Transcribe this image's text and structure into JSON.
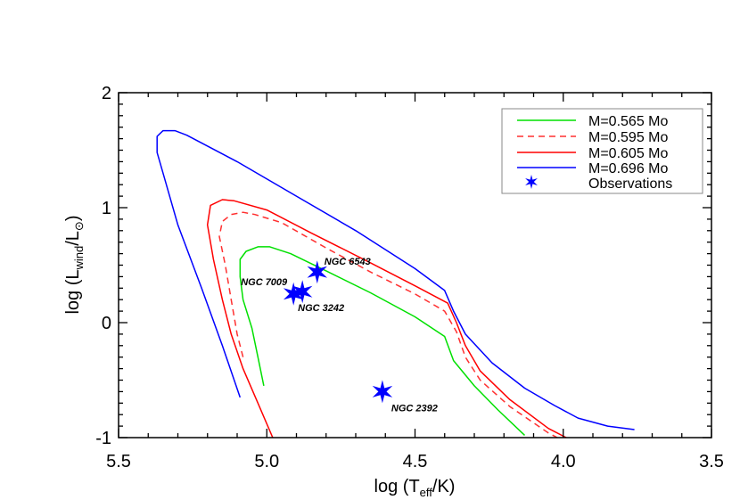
{
  "chart_data": {
    "type": "line",
    "title": "",
    "xlabel": "log (T_eff/K)",
    "ylabel": "log (L_wind/L_sun)",
    "xlim": [
      5.5,
      3.5
    ],
    "ylim": [
      -1,
      2
    ],
    "x_reversed": true,
    "x_ticks": [
      "5.5",
      "5.0",
      "4.5",
      "4.0",
      "3.5"
    ],
    "y_ticks": [
      "-1",
      "0",
      "1",
      "2"
    ],
    "grid": false,
    "legend_position": "upper right",
    "series": [
      {
        "name": "M=0.565 Mo",
        "color": "#00e000",
        "style": "solid",
        "points": [
          [
            5.01,
            -0.55
          ],
          [
            5.03,
            -0.3
          ],
          [
            5.05,
            -0.05
          ],
          [
            5.08,
            0.2
          ],
          [
            5.09,
            0.4
          ],
          [
            5.09,
            0.55
          ],
          [
            5.07,
            0.62
          ],
          [
            5.03,
            0.66
          ],
          [
            4.99,
            0.66
          ],
          [
            4.92,
            0.6
          ],
          [
            4.8,
            0.45
          ],
          [
            4.65,
            0.26
          ],
          [
            4.5,
            0.05
          ],
          [
            4.4,
            -0.12
          ],
          [
            4.37,
            -0.33
          ],
          [
            4.3,
            -0.55
          ],
          [
            4.22,
            -0.76
          ],
          [
            4.13,
            -0.98
          ]
        ]
      },
      {
        "name": "M=0.595 Mo",
        "color": "#ff3030",
        "style": "dashed",
        "points": [
          [
            5.08,
            -0.3
          ],
          [
            5.1,
            -0.1
          ],
          [
            5.12,
            0.2
          ],
          [
            5.14,
            0.5
          ],
          [
            5.16,
            0.75
          ],
          [
            5.15,
            0.88
          ],
          [
            5.12,
            0.94
          ],
          [
            5.08,
            0.96
          ],
          [
            5.04,
            0.94
          ],
          [
            4.95,
            0.87
          ],
          [
            4.8,
            0.65
          ],
          [
            4.65,
            0.44
          ],
          [
            4.5,
            0.25
          ],
          [
            4.4,
            0.1
          ],
          [
            4.36,
            -0.08
          ],
          [
            4.33,
            -0.3
          ],
          [
            4.28,
            -0.5
          ],
          [
            4.18,
            -0.73
          ],
          [
            4.05,
            -0.96
          ],
          [
            4.02,
            -1.0
          ]
        ]
      },
      {
        "name": "M=0.605 Mo",
        "color": "#ff0000",
        "style": "solid",
        "points": [
          [
            4.98,
            -1.0
          ],
          [
            5.03,
            -0.7
          ],
          [
            5.08,
            -0.4
          ],
          [
            5.12,
            -0.1
          ],
          [
            5.15,
            0.2
          ],
          [
            5.18,
            0.55
          ],
          [
            5.2,
            0.85
          ],
          [
            5.19,
            1.02
          ],
          [
            5.15,
            1.07
          ],
          [
            5.11,
            1.06
          ],
          [
            5.0,
            0.98
          ],
          [
            4.85,
            0.78
          ],
          [
            4.65,
            0.52
          ],
          [
            4.5,
            0.32
          ],
          [
            4.39,
            0.17
          ],
          [
            4.36,
            0.0
          ],
          [
            4.33,
            -0.2
          ],
          [
            4.28,
            -0.42
          ],
          [
            4.18,
            -0.67
          ],
          [
            4.05,
            -0.92
          ],
          [
            3.99,
            -1.0
          ]
        ]
      },
      {
        "name": "M=0.696 Mo",
        "color": "#0000ff",
        "style": "solid",
        "points": [
          [
            5.09,
            -0.65
          ],
          [
            5.15,
            -0.2
          ],
          [
            5.22,
            0.3
          ],
          [
            5.3,
            0.85
          ],
          [
            5.35,
            1.3
          ],
          [
            5.37,
            1.48
          ],
          [
            5.37,
            1.62
          ],
          [
            5.35,
            1.67
          ],
          [
            5.31,
            1.67
          ],
          [
            5.27,
            1.63
          ],
          [
            5.1,
            1.4
          ],
          [
            4.9,
            1.1
          ],
          [
            4.7,
            0.8
          ],
          [
            4.5,
            0.47
          ],
          [
            4.4,
            0.28
          ],
          [
            4.37,
            0.1
          ],
          [
            4.33,
            -0.1
          ],
          [
            4.24,
            -0.35
          ],
          [
            4.13,
            -0.57
          ],
          [
            4.03,
            -0.72
          ],
          [
            3.95,
            -0.83
          ],
          [
            3.85,
            -0.9
          ],
          [
            3.76,
            -0.93
          ]
        ]
      }
    ],
    "observations": {
      "name": "Observations",
      "color": "#0000ff",
      "marker": "star",
      "points": [
        {
          "label": "NGC 6543",
          "x": 4.83,
          "y": 0.44
        },
        {
          "label": "NGC 7009",
          "x": 4.91,
          "y": 0.25
        },
        {
          "label": "NGC 3242",
          "x": 4.88,
          "y": 0.27
        },
        {
          "label": "NGC 2392",
          "x": 4.61,
          "y": -0.6
        }
      ]
    }
  },
  "legend": {
    "items": [
      {
        "label": "M=0.565 Mo"
      },
      {
        "label": "M=0.595 Mo"
      },
      {
        "label": "M=0.605 Mo"
      },
      {
        "label": "M=0.696 Mo"
      },
      {
        "label": "Observations"
      }
    ]
  },
  "axes": {
    "xlabel_main": "log (T",
    "xlabel_sub": "eff",
    "xlabel_end": "/K)",
    "ylabel_main": "log (L",
    "ylabel_sub": "wind",
    "ylabel_mid": "/L",
    "ylabel_end": ")"
  },
  "annotations": [
    "NGC 6543",
    "NGC 7009",
    "NGC 3242",
    "NGC 2392"
  ]
}
